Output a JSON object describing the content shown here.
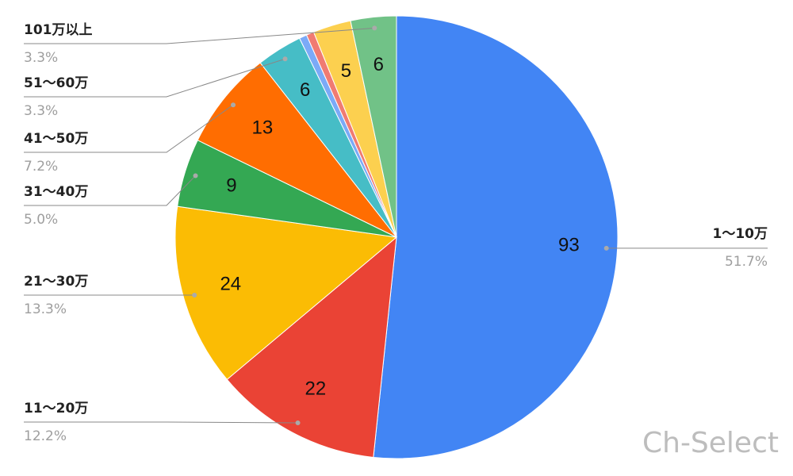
{
  "chart_data": {
    "type": "pie",
    "categories": [
      "1〜10万",
      "11〜20万",
      "21〜30万",
      "31〜40万",
      "41〜50万",
      "51〜60万",
      null,
      null,
      null,
      "101万以上"
    ],
    "values": [
      93,
      22,
      24,
      9,
      13,
      6,
      1,
      1,
      5,
      6
    ],
    "percent_labels": [
      "51.7%",
      "12.2%",
      "13.3%",
      "5.0%",
      "7.2%",
      "3.3%",
      null,
      null,
      null,
      "3.3%"
    ],
    "colors": [
      "#4285f4",
      "#ea4335",
      "#fbbc04",
      "#34a853",
      "#ff6d01",
      "#46bdc6",
      "#7baaf7",
      "#f07b72",
      "#fcd04f",
      "#71c287"
    ],
    "watermark": "Ch-Select"
  }
}
